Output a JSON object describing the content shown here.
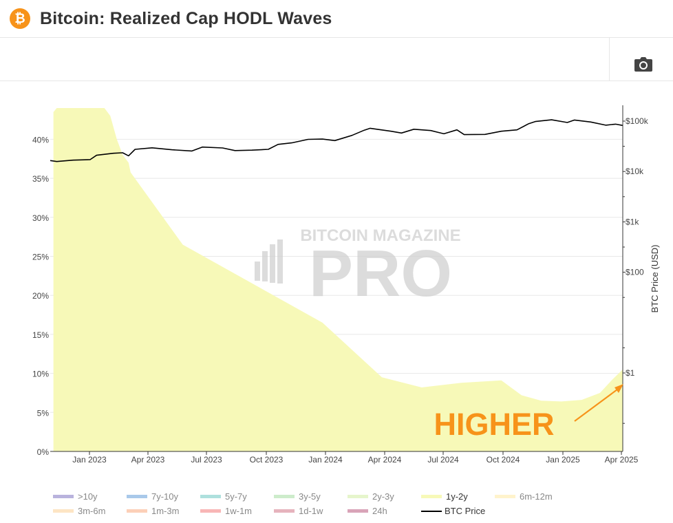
{
  "header": {
    "title": "Bitcoin: Realized Cap HODL Waves",
    "logo_glyph": "₿",
    "logo_color": "#f7931a"
  },
  "toolbar": {
    "screenshot_icon": "camera-icon"
  },
  "watermark": {
    "line1": "BITCOIN MAGAZINE",
    "line2": "PRO"
  },
  "annotation": {
    "text": "HIGHER",
    "color": "#f7931a"
  },
  "chart_data": {
    "type": "area",
    "x_tick_labels": [
      "Jan 2023",
      "Apr 2023",
      "Jul 2023",
      "Oct 2023",
      "Jan 2024",
      "Apr 2024",
      "Jul 2024",
      "Oct 2024",
      "Jan 2025",
      "Apr 2025"
    ],
    "y_left": {
      "ticks": [
        "0%",
        "5%",
        "10%",
        "15%",
        "20%",
        "25%",
        "30%",
        "35%",
        "40%"
      ],
      "range": [
        0,
        44
      ]
    },
    "y_right": {
      "label": "BTC Price (USD)",
      "scale": "log",
      "ticks": [
        "$1",
        "$100",
        "$1k",
        "$10k",
        "$100k"
      ]
    },
    "grid": true,
    "legend_position": "bottom",
    "legend": [
      {
        "name": ">10y",
        "color": "#b9b3dd"
      },
      {
        "name": "7y-10y",
        "color": "#a9c9ea"
      },
      {
        "name": "5y-7y",
        "color": "#aee0dd"
      },
      {
        "name": "3y-5y",
        "color": "#cdeccb"
      },
      {
        "name": "2y-3y",
        "color": "#e6f5cc"
      },
      {
        "name": "1y-2y",
        "color": "#f7f9b8"
      },
      {
        "name": "6m-12m",
        "color": "#fff3cc"
      },
      {
        "name": "3m-6m",
        "color": "#fde5c4"
      },
      {
        "name": "1m-3m",
        "color": "#fcd0b8"
      },
      {
        "name": "1w-1m",
        "color": "#f8b6b6"
      },
      {
        "name": "1d-1w",
        "color": "#e6b3bd"
      },
      {
        "name": "24h",
        "color": "#d9a4b8"
      },
      {
        "name": "BTC Price",
        "color": "#000000",
        "line": true
      }
    ],
    "series": [
      {
        "name": "1y-2y",
        "color": "#f7f9b8",
        "x": [
          "2022-11-15",
          "2022-11-20",
          "2022-12-01",
          "2023-01-01",
          "2023-01-20",
          "2023-02-01",
          "2023-02-10",
          "2023-02-20",
          "2023-03-01",
          "2023-03-10",
          "2023-03-20",
          "2023-04-01",
          "2023-04-15",
          "2023-05-01",
          "2023-05-15",
          "2023-06-01",
          "2023-06-15",
          "2023-07-01",
          "2023-07-15",
          "2023-08-01",
          "2023-08-15",
          "2023-09-01",
          "2023-09-15",
          "2023-10-01",
          "2023-10-15",
          "2023-11-01",
          "2023-11-15",
          "2023-12-01",
          "2023-12-15",
          "2024-01-01",
          "2024-01-15",
          "2024-02-01",
          "2024-02-15",
          "2024-03-01",
          "2024-03-15",
          "2024-04-01",
          "2024-04-15",
          "2024-05-01",
          "2024-06-01",
          "2024-07-01",
          "2024-08-01",
          "2024-09-01",
          "2024-10-01",
          "2024-10-15",
          "2024-11-01",
          "2024-11-15",
          "2024-12-01",
          "2024-12-15",
          "2025-01-01",
          "2025-01-15",
          "2025-02-01",
          "2025-02-15",
          "2025-03-01",
          "2025-03-15",
          "2025-03-31",
          "2025-04-05"
        ],
        "values": [
          43.5,
          44,
          44,
          44,
          44,
          44,
          43,
          40,
          38,
          37,
          33,
          30,
          27,
          25,
          23,
          21.5,
          21,
          20.6,
          19.5,
          18.5,
          17.2,
          15.5,
          14.2,
          13.0,
          11.2,
          10.5,
          9.2,
          8.0,
          7.3,
          6.7,
          6.2,
          5.5,
          4.8,
          4.2,
          3.4,
          3.0,
          2.3,
          1.5,
          1.4,
          0.4,
          0.9,
          1.0,
          0.9,
          0.0,
          0.0,
          0.0,
          0.0,
          0.0,
          0.0,
          0.0,
          0.0,
          0.0,
          0.0,
          0.5,
          1.2,
          1.0
        ]
      },
      {
        "name": "1y-2y (upper band)",
        "color": "#f7f9b8",
        "x": [
          "2022-11-15",
          "2023-01-01",
          "2023-06-01",
          "2024-01-01",
          "2024-04-01",
          "2024-06-01",
          "2024-08-01",
          "2024-10-01",
          "2024-11-01",
          "2024-12-01",
          "2025-01-01",
          "2025-02-01",
          "2025-03-01",
          "2025-03-20",
          "2025-04-05"
        ],
        "values": [
          43.5,
          44,
          26.5,
          16.5,
          9.5,
          8.2,
          8.8,
          9.1,
          7.2,
          6.5,
          6.4,
          6.6,
          7.5,
          9.2,
          10.5
        ]
      },
      {
        "name": "BTC Price",
        "color": "#000000",
        "x": [
          "2022-11-10",
          "2022-11-20",
          "2022-12-15",
          "2023-01-10",
          "2023-01-20",
          "2023-02-15",
          "2023-03-01",
          "2023-03-10",
          "2023-03-20",
          "2023-04-15",
          "2023-05-15",
          "2023-06-15",
          "2023-07-01",
          "2023-08-01",
          "2023-08-20",
          "2023-09-15",
          "2023-10-10",
          "2023-10-25",
          "2023-11-15",
          "2023-12-10",
          "2024-01-01",
          "2024-01-20",
          "2024-02-15",
          "2024-03-05",
          "2024-03-14",
          "2024-04-15",
          "2024-05-01",
          "2024-05-20",
          "2024-06-15",
          "2024-07-05",
          "2024-07-25",
          "2024-08-05",
          "2024-09-06",
          "2024-10-01",
          "2024-10-25",
          "2024-11-12",
          "2024-11-22",
          "2024-12-17",
          "2025-01-10",
          "2025-01-21",
          "2025-02-15",
          "2025-03-10",
          "2025-03-25",
          "2025-04-05"
        ],
        "values": [
          16500,
          15800,
          16800,
          17200,
          21000,
          23000,
          23500,
          20500,
          27500,
          29500,
          27000,
          25500,
          30500,
          29300,
          26000,
          26500,
          27500,
          34500,
          37000,
          43500,
          44000,
          41000,
          52000,
          66000,
          72000,
          63000,
          58000,
          69000,
          65000,
          56000,
          67000,
          54000,
          54500,
          63000,
          67000,
          89000,
          98000,
          106000,
          94000,
          105000,
          96000,
          83000,
          87000,
          82000
        ]
      }
    ]
  }
}
